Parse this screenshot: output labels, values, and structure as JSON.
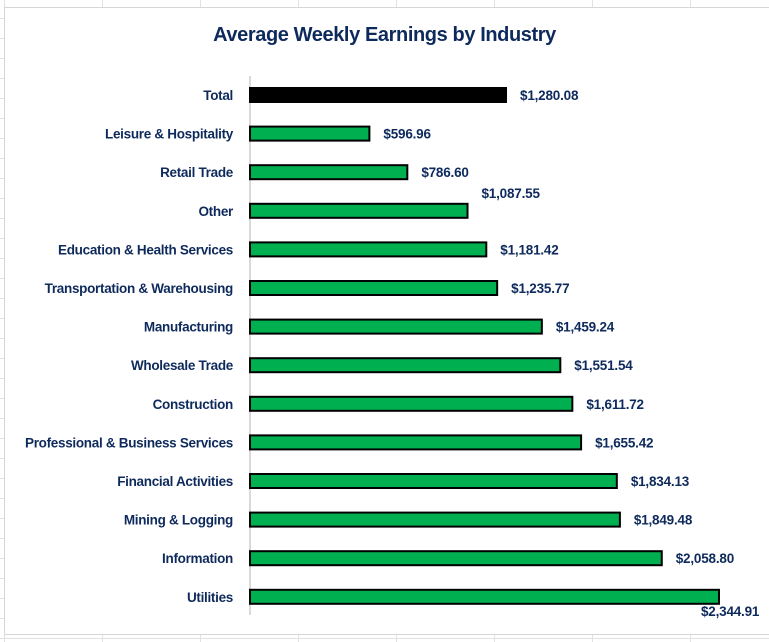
{
  "chart_data": {
    "type": "bar",
    "orientation": "horizontal",
    "title": "Average Weekly Earnings by Industry",
    "xlabel": "",
    "ylabel": "",
    "categories": [
      "Total",
      "Leisure & Hospitality",
      "Retail Trade",
      "Other",
      "Education & Health Services",
      "Transportation & Warehousing",
      "Manufacturing",
      "Wholesale Trade",
      "Construction",
      "Professional & Business Services",
      "Financial Activities",
      "Mining & Logging",
      "Information",
      "Utilities"
    ],
    "values": [
      1280.08,
      596.96,
      786.6,
      1087.55,
      1181.42,
      1235.77,
      1459.24,
      1551.54,
      1611.72,
      1655.42,
      1834.13,
      1849.48,
      2058.8,
      2344.91
    ],
    "data_labels": [
      "$1,280.08",
      "$596.96",
      "$786.60",
      "$1,087.55",
      "$1,181.42",
      "$1,235.77",
      "$1,459.24",
      "$1,551.54",
      "$1,611.72",
      "$1,655.42",
      "$1,834.13",
      "$1,849.48",
      "$2,058.80",
      "$2,344.91"
    ],
    "xlim": [
      0,
      2600
    ],
    "grid": false,
    "legend": "none",
    "colors": {
      "total": "#000000",
      "industry": "#00b050",
      "bar_border": "#000000",
      "text": "#0e2a5c"
    }
  }
}
